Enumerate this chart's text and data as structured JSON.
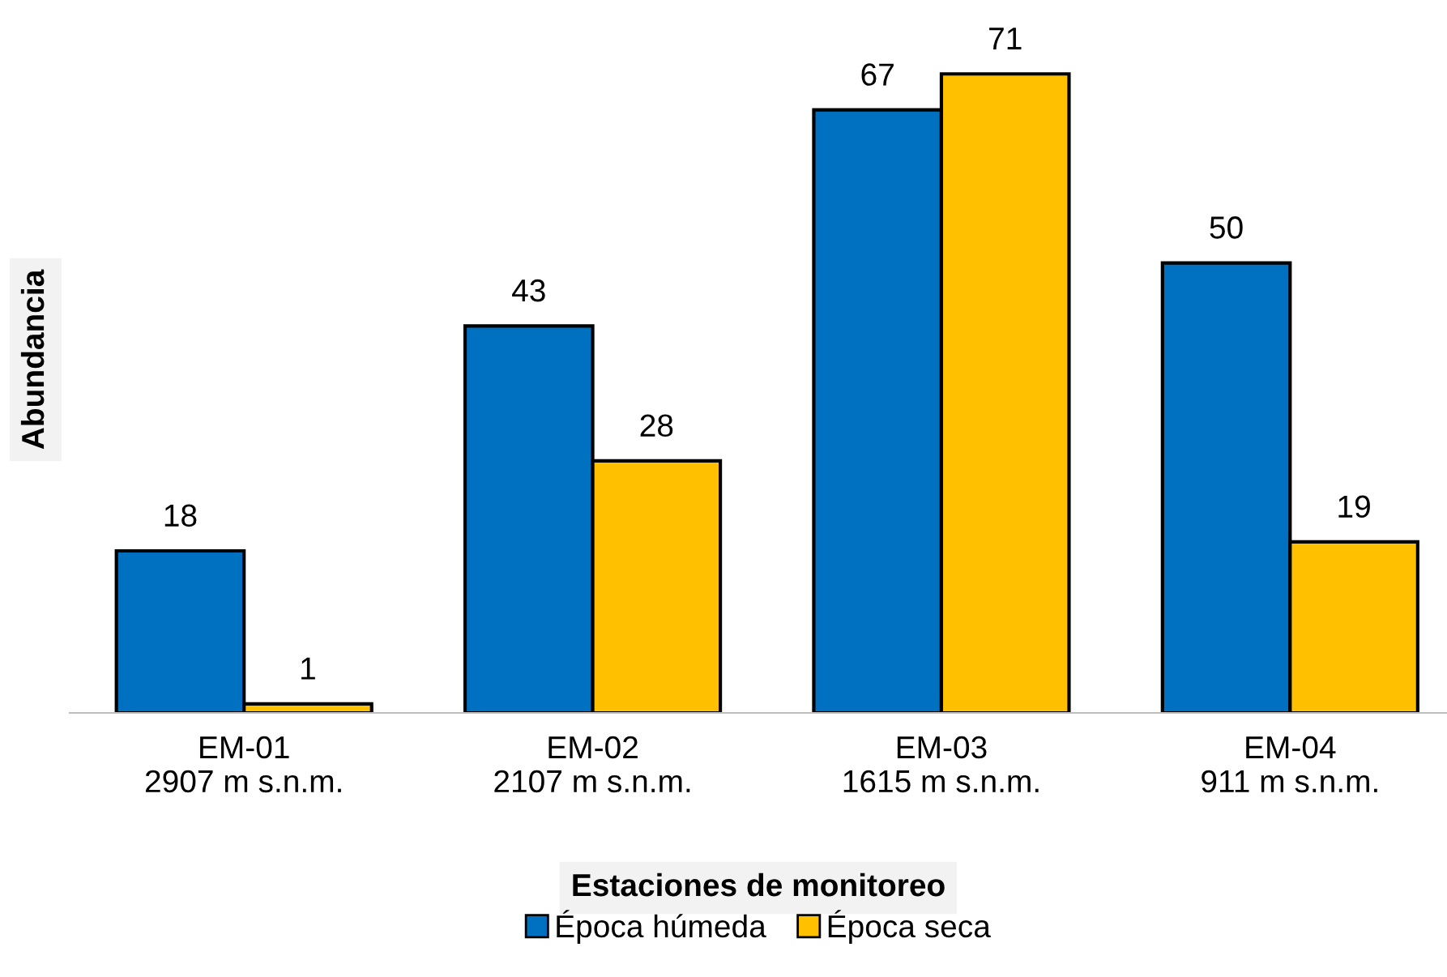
{
  "chart_data": {
    "type": "bar",
    "xlabel": "Estaciones de monitoreo",
    "ylabel": "Abundancia",
    "categories": [
      "EM-01\n2907 m s.n.m.",
      "EM-02\n2107 m s.n.m.",
      "EM-03\n1615 m s.n.m.",
      "EM-04\n911 m s.n.m."
    ],
    "series": [
      {
        "name": "Época húmeda",
        "color": "#0070c0",
        "values": [
          18,
          43,
          67,
          50
        ]
      },
      {
        "name": "Época seca",
        "color": "#ffc000",
        "values": [
          1,
          28,
          71,
          19
        ]
      }
    ],
    "data_labels": true,
    "legend": "bottom",
    "grid": false
  }
}
